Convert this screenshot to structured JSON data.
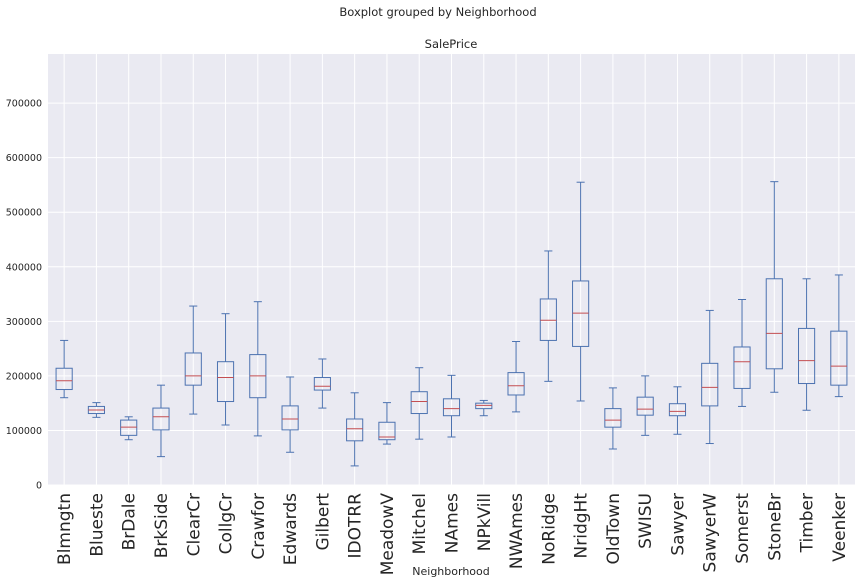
{
  "chart_data": {
    "type": "box",
    "suptitle": "Boxplot grouped by Neighborhood",
    "title": "SalePrice",
    "xlabel": "Neighborhood",
    "ylabel": "",
    "ylim": [
      0,
      790000
    ],
    "yticks": [
      0,
      100000,
      200000,
      300000,
      400000,
      500000,
      600000,
      700000
    ],
    "ytick_labels": [
      "0",
      "100000",
      "200000",
      "300000",
      "400000",
      "500000",
      "600000",
      "700000"
    ],
    "grid": true,
    "colors": {
      "background": "#eaeaf2",
      "grid": "#ffffff",
      "box": "#4c72b0",
      "median": "#c44e52"
    },
    "categories": [
      "Blmngtn",
      "Blueste",
      "BrDale",
      "BrkSide",
      "ClearCr",
      "CollgCr",
      "Crawfor",
      "Edwards",
      "Gilbert",
      "IDOTRR",
      "MeadowV",
      "Mitchel",
      "NAmes",
      "NPkVill",
      "NWAmes",
      "NoRidge",
      "NridgHt",
      "OldTown",
      "SWISU",
      "Sawyer",
      "SawyerW",
      "Somerst",
      "StoneBr",
      "Timber",
      "Veenker"
    ],
    "boxes": [
      {
        "whislo": 160000,
        "q1": 175000,
        "med": 191000,
        "q3": 214000,
        "whishi": 265000
      },
      {
        "whislo": 124000,
        "q1": 131000,
        "med": 137500,
        "q3": 144000,
        "whishi": 151000
      },
      {
        "whislo": 83000,
        "q1": 91000,
        "med": 106000,
        "q3": 119000,
        "whishi": 125000
      },
      {
        "whislo": 52000,
        "q1": 101000,
        "med": 125000,
        "q3": 141000,
        "whishi": 183000
      },
      {
        "whislo": 130000,
        "q1": 183000,
        "med": 200000,
        "q3": 242000,
        "whishi": 328000
      },
      {
        "whislo": 110000,
        "q1": 153000,
        "med": 197000,
        "q3": 226000,
        "whishi": 314000
      },
      {
        "whislo": 90000,
        "q1": 160000,
        "med": 200000,
        "q3": 239000,
        "whishi": 336000
      },
      {
        "whislo": 60000,
        "q1": 101000,
        "med": 121000,
        "q3": 145000,
        "whishi": 198000
      },
      {
        "whislo": 141000,
        "q1": 174000,
        "med": 181000,
        "q3": 197000,
        "whishi": 231000
      },
      {
        "whislo": 35000,
        "q1": 81000,
        "med": 103000,
        "q3": 121000,
        "whishi": 169000
      },
      {
        "whislo": 75000,
        "q1": 83000,
        "med": 88000,
        "q3": 115000,
        "whishi": 151000
      },
      {
        "whislo": 84000,
        "q1": 131000,
        "med": 153000,
        "q3": 171000,
        "whishi": 215000
      },
      {
        "whislo": 88000,
        "q1": 127000,
        "med": 140000,
        "q3": 158000,
        "whishi": 201000
      },
      {
        "whislo": 127000,
        "q1": 140000,
        "med": 146000,
        "q3": 150000,
        "whishi": 155000
      },
      {
        "whislo": 134000,
        "q1": 165000,
        "med": 182000,
        "q3": 206000,
        "whishi": 263000
      },
      {
        "whislo": 190000,
        "q1": 265000,
        "med": 302000,
        "q3": 341000,
        "whishi": 429000
      },
      {
        "whislo": 154000,
        "q1": 254000,
        "med": 315000,
        "q3": 374000,
        "whishi": 555000
      },
      {
        "whislo": 66000,
        "q1": 106000,
        "med": 119000,
        "q3": 140000,
        "whishi": 178000
      },
      {
        "whislo": 91000,
        "q1": 128000,
        "med": 139000,
        "q3": 161000,
        "whishi": 200000
      },
      {
        "whislo": 93000,
        "q1": 127000,
        "med": 135000,
        "q3": 149000,
        "whishi": 180000
      },
      {
        "whislo": 76000,
        "q1": 145000,
        "med": 179000,
        "q3": 223000,
        "whishi": 320000
      },
      {
        "whislo": 144000,
        "q1": 177000,
        "med": 226000,
        "q3": 253000,
        "whishi": 340000
      },
      {
        "whislo": 170000,
        "q1": 213000,
        "med": 278000,
        "q3": 378000,
        "whishi": 556000
      },
      {
        "whislo": 137000,
        "q1": 186000,
        "med": 228000,
        "q3": 287000,
        "whishi": 378000
      },
      {
        "whislo": 162000,
        "q1": 183000,
        "med": 218000,
        "q3": 282000,
        "whishi": 385000
      }
    ]
  }
}
